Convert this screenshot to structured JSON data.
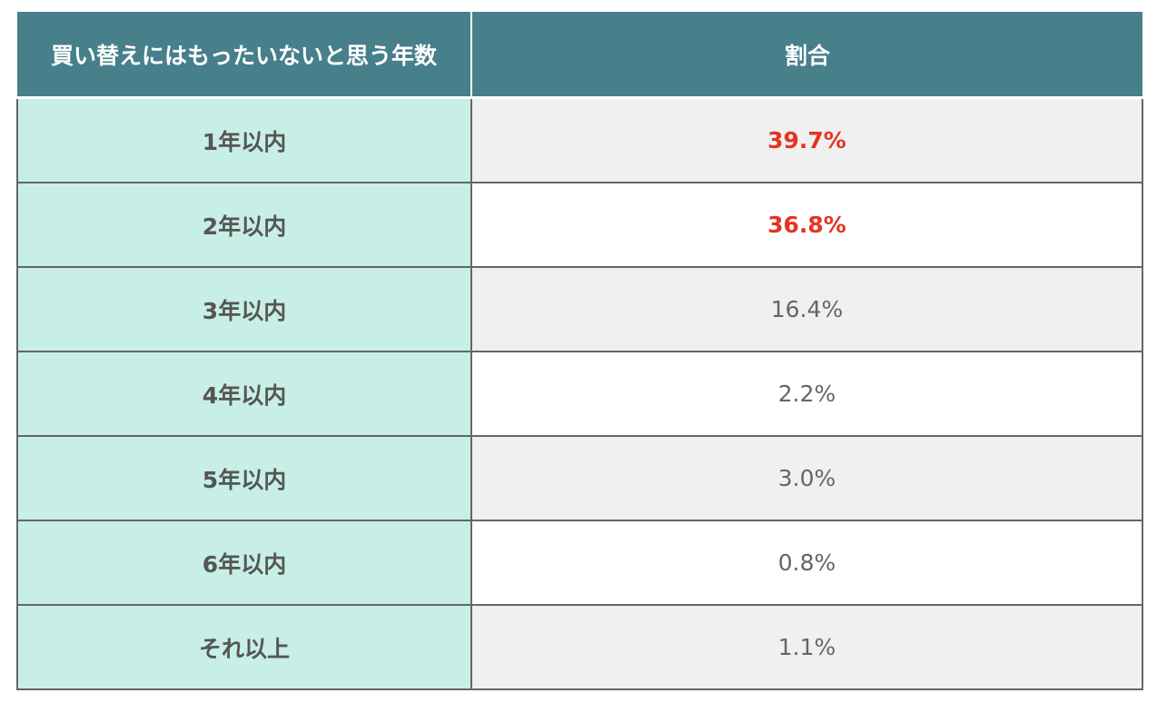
{
  "table": {
    "headers": [
      "買い替えにはもったいないと思う年数",
      "割合"
    ],
    "rows": [
      {
        "label": "1年以内",
        "value": "39.7%",
        "highlight": true
      },
      {
        "label": "2年以内",
        "value": "36.8%",
        "highlight": true
      },
      {
        "label": "3年以内",
        "value": "16.4%",
        "highlight": false
      },
      {
        "label": "4年以内",
        "value": "2.2%",
        "highlight": false
      },
      {
        "label": "5年以内",
        "value": "3.0%",
        "highlight": false
      },
      {
        "label": "6年以内",
        "value": "0.8%",
        "highlight": false
      },
      {
        "label": "それ以上",
        "value": "1.1%",
        "highlight": false
      }
    ]
  },
  "colors": {
    "header_bg": "#477f8b",
    "label_bg": "#c7efe5",
    "highlight_text": "#e53322"
  }
}
